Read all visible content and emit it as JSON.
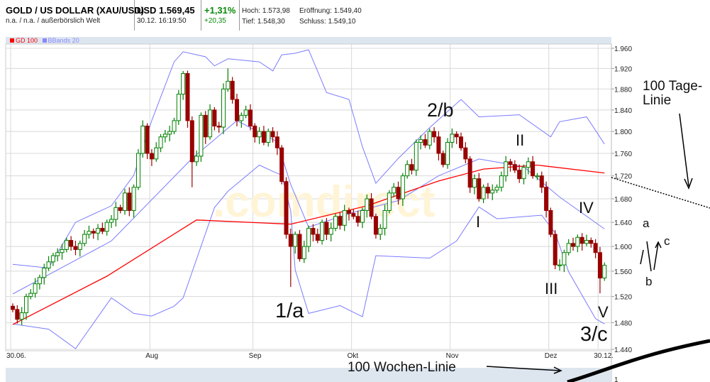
{
  "header": {
    "title": "GOLD / US DOLLAR (XAU/USD)",
    "subtitle": "n.a. / n.a. / außerbörslich Welt",
    "price": "USD 1.569,45",
    "timestamp": "30.12. 16:19:50",
    "change_pct": "+1,31%",
    "change_abs": "+20,35",
    "high": "Hoch: 1.573,98",
    "low": "Tief: 1.548,30",
    "open": "Eröffnung: 1.549,40",
    "close": "Schluss: 1.549,10"
  },
  "legend": [
    {
      "label": "GD 100",
      "color": "#ff0000"
    },
    {
      "label": "BBands 20",
      "color": "#8888ff"
    }
  ],
  "watermark": ".comdirect",
  "colors": {
    "up": "#008000",
    "down": "#990000",
    "gd100": "#ff0000",
    "bbands": "#7b7bff",
    "grid": "#d8d8d8",
    "panel": "#dde6ef"
  },
  "chart_data": {
    "type": "candlestick",
    "y_scale": "log",
    "ylim": [
      1440,
      1960
    ],
    "yticks": [
      "1.960",
      "1.920",
      "1.880",
      "1.840",
      "1.800",
      "1.760",
      "1.720",
      "1.680",
      "1.640",
      "1.600",
      "1.560",
      "1.520",
      "1.480",
      "1.440"
    ],
    "ytick_values": [
      1960,
      1920,
      1880,
      1840,
      1800,
      1760,
      1720,
      1680,
      1640,
      1600,
      1560,
      1520,
      1480,
      1440
    ],
    "xticks": [
      {
        "label": "30.06.",
        "day": 0
      },
      {
        "label": "Aug",
        "day": 32
      },
      {
        "label": "Sep",
        "day": 55
      },
      {
        "label": "Okt",
        "day": 77
      },
      {
        "label": "Nov",
        "day": 99
      },
      {
        "label": "Dez",
        "day": 121
      },
      {
        "label": "30.12.",
        "day": 132
      }
    ],
    "lower_panel_tick": "1",
    "grid": true,
    "first_open": 1505,
    "closes": [
      1500,
      1485,
      1495,
      1520,
      1525,
      1540,
      1550,
      1565,
      1575,
      1585,
      1590,
      1595,
      1610,
      1600,
      1595,
      1605,
      1620,
      1625,
      1622,
      1630,
      1625,
      1640,
      1645,
      1665,
      1660,
      1690,
      1660,
      1700,
      1760,
      1810,
      1760,
      1750,
      1770,
      1790,
      1795,
      1800,
      1820,
      1870,
      1910,
      1820,
      1745,
      1755,
      1830,
      1790,
      1840,
      1810,
      1808,
      1880,
      1895,
      1860,
      1820,
      1830,
      1840,
      1810,
      1790,
      1800,
      1780,
      1800,
      1790,
      1770,
      1710,
      1620,
      1600,
      1620,
      1580,
      1600,
      1630,
      1620,
      1610,
      1640,
      1620,
      1630,
      1650,
      1635,
      1660,
      1655,
      1650,
      1640,
      1660,
      1680,
      1650,
      1620,
      1630,
      1660,
      1690,
      1700,
      1680,
      1720,
      1740,
      1730,
      1780,
      1785,
      1775,
      1800,
      1790,
      1760,
      1740,
      1780,
      1795,
      1790,
      1770,
      1750,
      1700,
      1715,
      1680,
      1700,
      1690,
      1695,
      1700,
      1720,
      1745,
      1740,
      1730,
      1715,
      1735,
      1745,
      1720,
      1720,
      1700,
      1660,
      1620,
      1570,
      1570,
      1590,
      1605,
      1600,
      1615,
      1605,
      1610,
      1605,
      1590,
      1549.1,
      1569.45
    ],
    "extreme_wicks": [
      {
        "day": 40,
        "low": 1700
      },
      {
        "day": 38,
        "high": 1915
      },
      {
        "day": 48,
        "high": 1920
      },
      {
        "day": 62,
        "low": 1535
      },
      {
        "day": 131,
        "low": 1525
      },
      {
        "day": 132,
        "high": 1573.98
      }
    ],
    "series": [
      {
        "name": "GD 100",
        "points": [
          [
            0,
            1477
          ],
          [
            21,
            1552
          ],
          [
            41,
            1644
          ],
          [
            62,
            1637
          ],
          [
            79,
            1668
          ],
          [
            95,
            1711
          ],
          [
            105,
            1732
          ],
          [
            117,
            1739
          ],
          [
            132,
            1725
          ]
        ]
      },
      {
        "name": "BBands 20",
        "band": "upper",
        "points": [
          [
            0,
            1571
          ],
          [
            8,
            1565
          ],
          [
            14,
            1640
          ],
          [
            22,
            1668
          ],
          [
            27,
            1721
          ],
          [
            31,
            1820
          ],
          [
            36,
            1933
          ],
          [
            38,
            1953
          ],
          [
            43,
            1943
          ],
          [
            45,
            1925
          ],
          [
            48,
            1939
          ],
          [
            55,
            1933
          ],
          [
            58,
            1915
          ],
          [
            60,
            1947
          ],
          [
            63,
            1950
          ],
          [
            66,
            1957
          ],
          [
            70,
            1873
          ],
          [
            75,
            1860
          ],
          [
            78,
            1772
          ],
          [
            81,
            1707
          ],
          [
            86,
            1751
          ],
          [
            93,
            1807
          ],
          [
            100,
            1860
          ],
          [
            104,
            1827
          ],
          [
            113,
            1831
          ],
          [
            120,
            1790
          ],
          [
            122,
            1818
          ],
          [
            128,
            1827
          ],
          [
            132,
            1777
          ]
        ]
      },
      {
        "name": "BBands 20",
        "band": "middle",
        "points": [
          [
            0,
            1524
          ],
          [
            22,
            1609
          ],
          [
            40,
            1751
          ],
          [
            50,
            1820
          ],
          [
            59,
            1781
          ],
          [
            62,
            1705
          ],
          [
            66,
            1632
          ],
          [
            76,
            1657
          ],
          [
            86,
            1677
          ],
          [
            95,
            1720
          ],
          [
            104,
            1750
          ],
          [
            114,
            1736
          ],
          [
            122,
            1683
          ],
          [
            132,
            1629
          ]
        ]
      },
      {
        "name": "BBands 20",
        "band": "lower",
        "points": [
          [
            0,
            1478
          ],
          [
            8,
            1470
          ],
          [
            14,
            1441
          ],
          [
            22,
            1518
          ],
          [
            27,
            1494
          ],
          [
            31,
            1490
          ],
          [
            36,
            1505
          ],
          [
            38,
            1518
          ],
          [
            45,
            1665
          ],
          [
            48,
            1693
          ],
          [
            55,
            1739
          ],
          [
            58,
            1728
          ],
          [
            60,
            1721
          ],
          [
            62,
            1660
          ],
          [
            63,
            1562
          ],
          [
            66,
            1494
          ],
          [
            73,
            1506
          ],
          [
            78,
            1489
          ],
          [
            81,
            1585
          ],
          [
            93,
            1581
          ],
          [
            99,
            1609
          ],
          [
            104,
            1666
          ],
          [
            108,
            1646
          ],
          [
            118,
            1652
          ],
          [
            121,
            1622
          ],
          [
            124,
            1559
          ],
          [
            130,
            1486
          ],
          [
            132,
            1478
          ]
        ]
      }
    ],
    "annotations": {
      "tage_linie": "100 Tage-Linie",
      "wochen_linie": "100 Wochen-Linie",
      "w1a": "1/a",
      "w2b": "2/b",
      "w3c": "3/c",
      "wI": "I",
      "wII": "II",
      "wIII": "III",
      "wIV": "IV",
      "wV": "V",
      "wa": "a",
      "wb": "b",
      "wc": "c"
    }
  }
}
